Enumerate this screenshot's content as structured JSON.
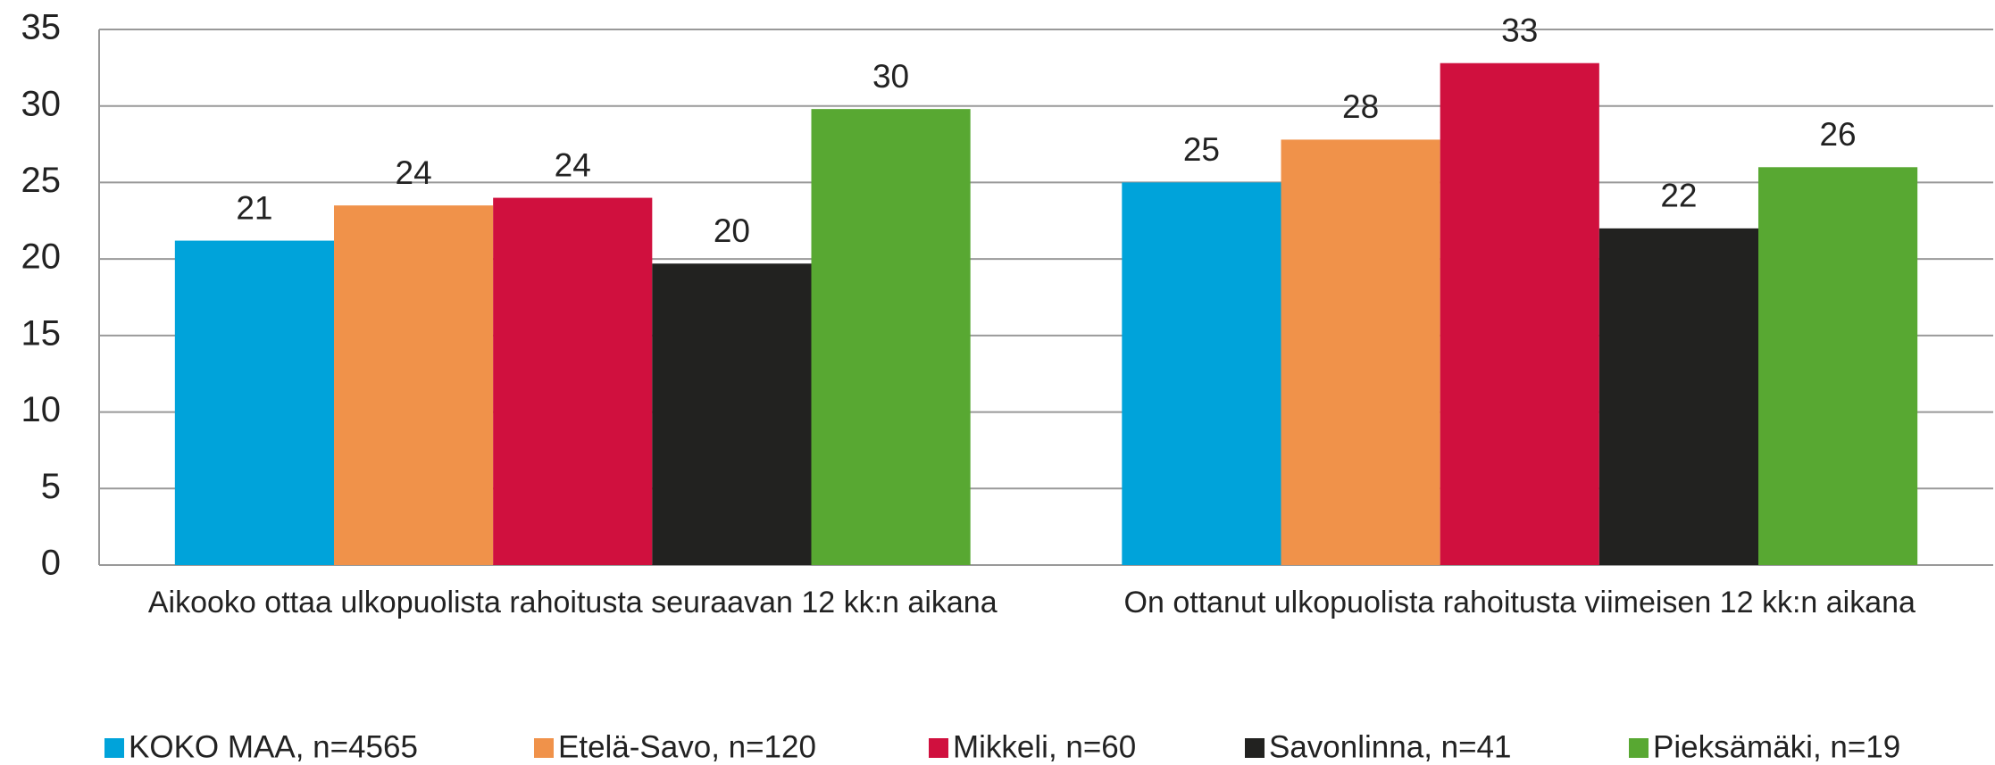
{
  "chart_data": {
    "type": "bar",
    "categories": [
      "Aikooko ottaa ulkopuolista rahoitusta seuraavan 12 kk:n aikana",
      "On ottanut ulkopuolista rahoitusta viimeisen 12 kk:n aikana"
    ],
    "series": [
      {
        "name": "KOKO MAA, n=4565",
        "color": "#00a3da",
        "values": [
          21.2,
          25
        ],
        "value_labels": [
          "21",
          "25"
        ]
      },
      {
        "name": "Etelä-Savo, n=120",
        "color": "#f0924a",
        "values": [
          23.5,
          27.8
        ],
        "value_labels": [
          "24",
          "28"
        ]
      },
      {
        "name": "Mikkeli, n=60",
        "color": "#d0103e",
        "values": [
          24,
          32.8
        ],
        "value_labels": [
          "24",
          "33"
        ]
      },
      {
        "name": "Savonlinna, n=41",
        "color": "#222220",
        "values": [
          19.7,
          22
        ],
        "value_labels": [
          "20",
          "22"
        ]
      },
      {
        "name": "Pieksämäki, n=19",
        "color": "#58a832",
        "values": [
          29.8,
          26
        ],
        "value_labels": [
          "30",
          "26"
        ]
      }
    ],
    "ylim": [
      0,
      35
    ],
    "yticks": [
      0,
      5,
      10,
      15,
      20,
      25,
      30,
      35
    ],
    "grid": true,
    "legend": "bottom"
  }
}
